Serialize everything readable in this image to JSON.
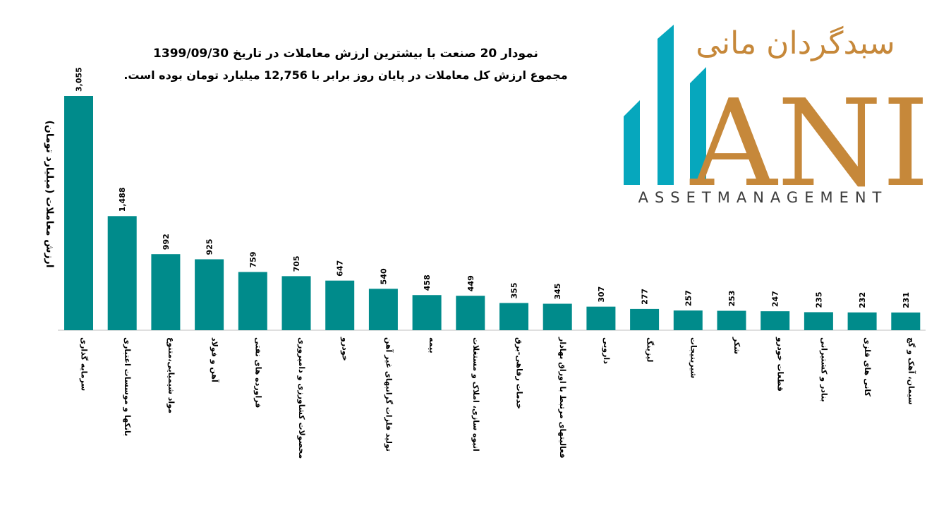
{
  "title_line1": "نمودار  20 صنعت با بیشترین ارزش معاملات در تاریخ 1399/09/30",
  "title_line2": "مجموع ارزش  کل معاملات در پایان روز برابر با 12,756 میلیارد تومان بوده است.",
  "logo": {
    "persian_text": "سبدگردان مانی",
    "latin_text": "ANI",
    "tagline": "ASSETMANAGEMENT",
    "bar_color": "#06a7bd",
    "text_color": "#c6883a"
  },
  "chart_data": {
    "type": "bar",
    "title": "",
    "xlabel": "",
    "ylabel": "ارزش معاملات (میلیارد تومان)",
    "bar_color": "#008b8b",
    "ylim": [
      0,
      3200
    ],
    "categories": [
      "سرمایه گذاری",
      "بانکها و موسسات اعتباری",
      "مواد شیمیایی،متنوع",
      "آهن و فولاد",
      "فراورده های نفتی",
      "محصولات کشاورزی و دامپروری",
      "خودرو",
      "تولید فلزات گرانبهای غیر آهن",
      "بیمه",
      "انبوه سازی، املاک و مستغلات",
      "خدمات رفاهی-برق",
      "فعالیتهای مرتبط با اوراق بهادار",
      "دارویی",
      "لیزینگ",
      "شیرینیجات",
      "شکر",
      "قطعات خودرو",
      "بنادر و کشتیرانی",
      "کانی های فلزی",
      "سیمان، آهک و گچ"
    ],
    "values": [
      3055,
      1488,
      992,
      925,
      759,
      705,
      647,
      540,
      458,
      449,
      355,
      345,
      307,
      277,
      257,
      253,
      247,
      235,
      232,
      231
    ],
    "value_labels": [
      "3,055",
      "1,488",
      "992",
      "925",
      "759",
      "705",
      "647",
      "540",
      "458",
      "449",
      "355",
      "345",
      "307",
      "277",
      "257",
      "253",
      "247",
      "235",
      "232",
      "231"
    ]
  }
}
